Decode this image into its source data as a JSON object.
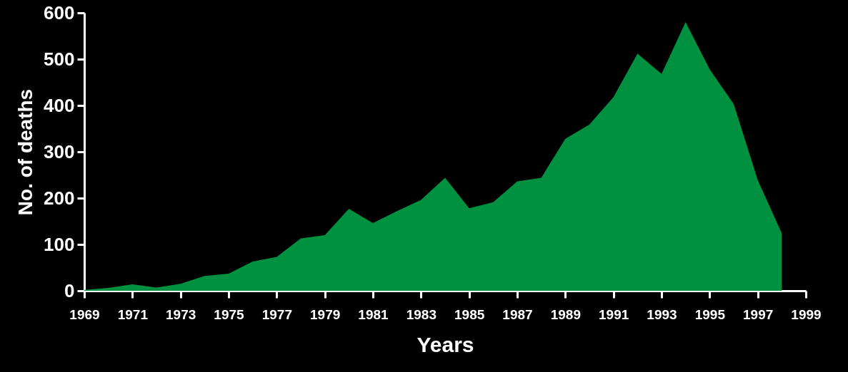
{
  "chart_data": {
    "type": "area",
    "xlabel": "Years",
    "ylabel": "No. of deaths",
    "x": [
      1969,
      1970,
      1971,
      1972,
      1973,
      1974,
      1975,
      1976,
      1977,
      1978,
      1979,
      1980,
      1981,
      1982,
      1983,
      1984,
      1985,
      1986,
      1987,
      1988,
      1989,
      1990,
      1991,
      1992,
      1993,
      1994,
      1995,
      1996,
      1997,
      1998
    ],
    "series": [
      {
        "color": "#009140",
        "values": [
          2,
          6,
          14,
          7,
          15,
          32,
          37,
          63,
          73,
          113,
          120,
          177,
          146,
          172,
          196,
          244,
          178,
          191,
          236,
          244,
          328,
          359,
          418,
          512,
          468,
          580,
          478,
          403,
          239,
          124
        ]
      }
    ],
    "xlim": [
      1969,
      1999
    ],
    "xticks": [
      1969,
      1971,
      1973,
      1975,
      1977,
      1979,
      1981,
      1983,
      1985,
      1987,
      1989,
      1991,
      1993,
      1995,
      1997,
      1999
    ],
    "ylim": [
      0,
      600
    ],
    "yticks": [
      0,
      100,
      200,
      300,
      400,
      500,
      600
    ],
    "grid": false
  }
}
